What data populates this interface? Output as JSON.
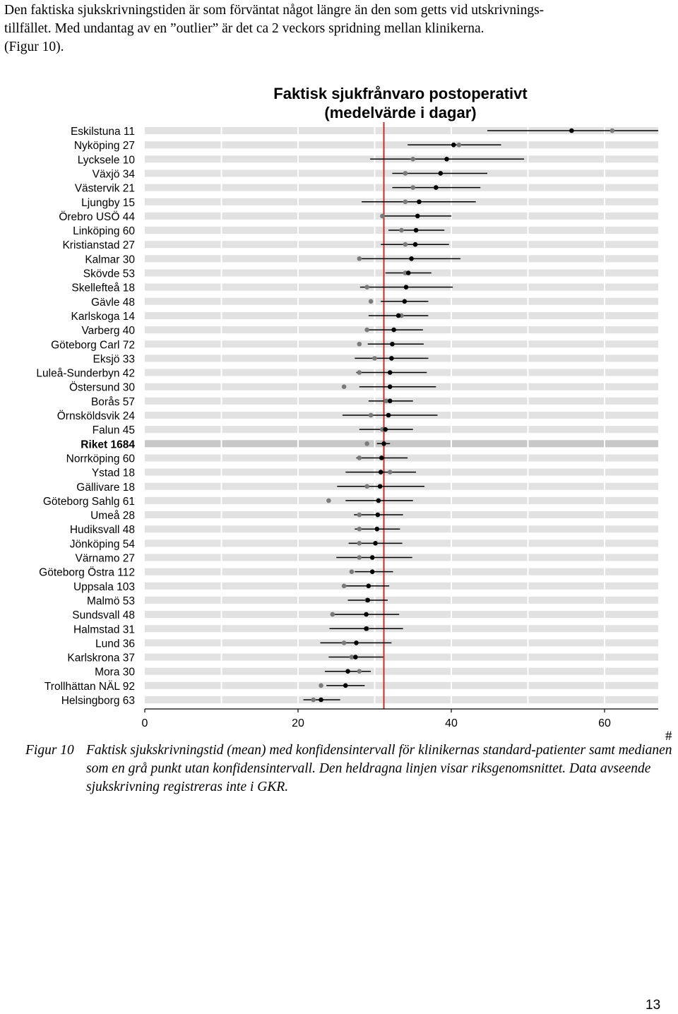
{
  "intro": {
    "line1": "Den faktiska sjukskrivningstiden är som förväntat något längre än den som getts vid utskrivnings-",
    "line2": "tillfället. Med undantag av en ”outlier” är det ca 2 veckors spridning mellan klinikerna.",
    "line3": "(Figur 10)."
  },
  "chart_data": {
    "type": "scatter",
    "title": "Faktisk sjukfrånvaro postoperativt",
    "subtitle": "(medelvärde i dagar)",
    "xlabel": "",
    "ylabel": "",
    "xlim": [
      0,
      67
    ],
    "xticks": [
      "0",
      "20",
      "40",
      "60"
    ],
    "reference_line": 31.2,
    "highlight": "Riket 1684",
    "categories": [
      "Eskilstuna 11",
      "Nyköping 27",
      "Lycksele 10",
      "Växjö 34",
      "Västervik 21",
      "Ljungby 15",
      "Örebro USÖ 44",
      "Linköping 60",
      "Kristianstad 27",
      "Kalmar 30",
      "Skövde 53",
      "Skellefteå 18",
      "Gävle 48",
      "Karlskoga 14",
      "Varberg 40",
      "Göteborg Carl 72",
      "Eksjö 33",
      "Luleå-Sunderbyn 42",
      "Östersund 30",
      "Borås 57",
      "Örnsköldsvik 24",
      "Falun 45",
      "Riket 1684",
      "Norrköping 60",
      "Ystad 18",
      "Gällivare 18",
      "Göteborg Sahlg 61",
      "Umeå 28",
      "Hudiksvall 48",
      "Jönköping 54",
      "Värnamo 27",
      "Göteborg Östra 112",
      "Uppsala 103",
      "Malmö 53",
      "Sundsvall 48",
      "Halmstad 31",
      "Lund 36",
      "Karlskrona 37",
      "Mora 30",
      "Trollhättan NÄL 92",
      "Helsingborg 63"
    ],
    "series": [
      {
        "name": "Medelvärde",
        "values": [
          55.7,
          40.3,
          39.4,
          38.6,
          38.0,
          35.8,
          35.6,
          35.4,
          35.3,
          34.8,
          34.4,
          34.1,
          33.9,
          33.1,
          32.5,
          32.3,
          32.2,
          32.0,
          32.0,
          32.0,
          31.8,
          31.4,
          31.2,
          30.9,
          30.8,
          30.7,
          30.5,
          30.4,
          30.3,
          30.1,
          29.7,
          29.7,
          29.2,
          29.1,
          28.9,
          28.9,
          27.6,
          27.5,
          26.5,
          26.2,
          23.0
        ]
      },
      {
        "name": "Konfidensintervall låg",
        "values": [
          44.7,
          34.3,
          29.4,
          32.3,
          32.3,
          28.3,
          31.2,
          31.8,
          30.8,
          28.3,
          31.4,
          28.1,
          30.8,
          29.2,
          28.9,
          29.1,
          27.4,
          27.6,
          28.0,
          29.2,
          25.8,
          28.0,
          30.3,
          27.6,
          26.2,
          25.1,
          26.2,
          27.3,
          27.4,
          26.6,
          25.0,
          27.4,
          26.1,
          26.5,
          24.5,
          24.1,
          22.9,
          24.0,
          23.5,
          23.7,
          20.7
        ]
      },
      {
        "name": "Konfidensintervall hög",
        "values": [
          67.0,
          46.5,
          49.5,
          44.7,
          43.8,
          43.2,
          40.0,
          39.1,
          39.7,
          41.2,
          37.4,
          40.2,
          37.0,
          37.0,
          36.3,
          36.4,
          37.0,
          36.8,
          38.0,
          35.0,
          38.2,
          35.0,
          32.0,
          34.3,
          35.4,
          36.5,
          35.0,
          33.7,
          33.3,
          33.6,
          34.9,
          32.4,
          31.9,
          31.7,
          33.2,
          33.7,
          32.2,
          31.1,
          29.5,
          28.7,
          25.5
        ]
      },
      {
        "name": "Median",
        "values": [
          61.0,
          41.0,
          35.0,
          34.0,
          35.0,
          34.0,
          31.0,
          33.5,
          34.0,
          28.0,
          34.0,
          29.0,
          29.5,
          33.5,
          29.0,
          28.0,
          30.0,
          28.0,
          26.0,
          31.5,
          29.5,
          31.0,
          29.0,
          28.0,
          32.0,
          29.0,
          24.0,
          28.0,
          28.0,
          28.0,
          28.0,
          27.0,
          26.0,
          29.0,
          24.5,
          29.0,
          26.0,
          27.0,
          28.0,
          23.0,
          22.0
        ]
      }
    ],
    "colors": {
      "mean": "#000000",
      "median": "#7a7a7a",
      "reference": "#c0302b",
      "band": "#e2e2e2",
      "band_highlight": "#c8c8c8",
      "axis": "#000000"
    }
  },
  "caption": {
    "label": "Figur 10",
    "text": "Faktisk sjukskrivningstid (mean) med konfidensintervall för klinikernas standard-patienter samt medianen som en grå punkt utan konfidensintervall. Den heldragna linjen visar riksgenomsnittet. Data avseende sjukskrivning registreras inte i GKR."
  },
  "margin_mark": "#",
  "page_number": "13"
}
